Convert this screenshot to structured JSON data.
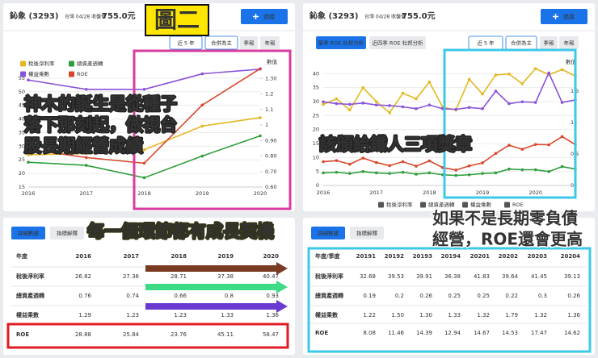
{
  "left_panel": {
    "stock_name": "鈊象 (3293)",
    "price_label": "台灣 04/28 收盤價",
    "price": "755.0元",
    "follow": "追蹤",
    "tabs": [
      "近 5 年",
      "合併為主",
      "季報",
      "年報"
    ],
    "table_tabs": [
      "詳細數據",
      "指標解釋"
    ],
    "table": {
      "header": [
        "年度",
        "2016",
        "2017",
        "2018",
        "2019",
        "2020"
      ],
      "rows": [
        [
          "稅後淨利率",
          "26.82",
          "27.36",
          "28.71",
          "37.38",
          "40.47"
        ],
        [
          "總資產週轉",
          "0.76",
          "0.74",
          "0.66",
          "0.8",
          "0.93"
        ],
        [
          "權益乘數",
          "1.29",
          "1.23",
          "1.23",
          "1.33",
          "1.36"
        ],
        [
          "ROE",
          "28.88",
          "25.84",
          "23.76",
          "45.11",
          "58.47"
        ]
      ]
    }
  },
  "right_panel": {
    "stock_name": "鈊象 (3293)",
    "price_label": "台灣 04/28 收盤價",
    "price": "755.0元",
    "follow": "追蹤",
    "tabs": [
      "單季 ROE 杜邦分析",
      "近四季 ROE 杜邦分析",
      "近 5 年",
      "合併為主",
      "季報",
      "年報"
    ],
    "table_tabs": [
      "詳細數據",
      "指標解釋"
    ],
    "table": {
      "header": [
        "年度/季度",
        "20191",
        "20192",
        "20193",
        "20194",
        "20201",
        "20202",
        "20203",
        "20204"
      ],
      "rows": [
        [
          "稅後淨利率",
          "32.68",
          "39.53",
          "39.91",
          "36.38",
          "41.83",
          "39.64",
          "41.45",
          "39.13"
        ],
        [
          "總資產週轉",
          "0.19",
          "0.2",
          "0.26",
          "0.25",
          "0.25",
          "0.22",
          "0.3",
          "0.26"
        ],
        [
          "權益乘數",
          "1.22",
          "1.50",
          "1.30",
          "1.33",
          "1.32",
          "1.79",
          "1.32",
          "1.36"
        ],
        [
          "ROE",
          "8.08",
          "11.46",
          "14.39",
          "12.94",
          "14.67",
          "14.53",
          "17.47",
          "14.62"
        ]
      ]
    }
  },
  "annotations": {
    "figure_label": "圖二",
    "left_chart_note": [
      "神木的誕生是從種子",
      "落下那刻起，做視台",
      "股長期經營成績"
    ],
    "left_table_note": "每一個環節都有成長契機",
    "right_chart_note": "該頒給鐵人三項獎章",
    "right_table_note": [
      "如果不是長期零負債",
      "經營，ROE還會更高"
    ]
  },
  "chart_data": [
    {
      "type": "line",
      "y2_label": "數值",
      "legend": "upper left",
      "grid": true,
      "categories": [
        "2016",
        "2017",
        "2018",
        "2019",
        "2020"
      ],
      "ylim": [
        15,
        60
      ],
      "yticks": [
        15,
        20,
        25,
        30,
        35,
        40,
        45,
        50,
        55
      ],
      "y2lim": [
        0.6,
        1.39
      ],
      "y2ticks": [
        {
          "value": 0.6,
          "label": "0.60"
        },
        {
          "value": 0.7,
          "label": "0.70"
        },
        {
          "value": 0.8,
          "label": "0.80"
        },
        {
          "value": 0.9,
          "label": "0.90"
        },
        1,
        1.1,
        1.2,
        {
          "value": 1.3,
          "label": "1.30"
        }
      ],
      "series": [
        {
          "name": "稅後淨利率",
          "color": "#e3b81f",
          "values": [
            26.82,
            27.36,
            28.71,
            37.38,
            40.47
          ]
        },
        {
          "name": "總資產週轉",
          "color": "#2f9e3c",
          "axis": "y2",
          "values": [
            0.76,
            0.74,
            0.66,
            0.8,
            0.93
          ]
        },
        {
          "name": "權益乘數",
          "color": "#8a52d8",
          "axis": "y2",
          "values": [
            1.29,
            1.23,
            1.23,
            1.33,
            1.36
          ]
        },
        {
          "name": "ROE",
          "color": "#d9472b",
          "values": [
            28.88,
            25.84,
            23.76,
            45.11,
            58.47
          ]
        }
      ]
    },
    {
      "type": "line",
      "y2_label": "數值",
      "legend": "bottom",
      "grid": true,
      "categories": [
        "2016",
        null,
        null,
        null,
        "2017",
        null,
        null,
        null,
        "2018",
        null,
        null,
        null,
        "2019",
        null,
        null,
        null,
        "2020",
        null,
        null,
        null
      ],
      "ylim": [
        0,
        45
      ],
      "yticks": [
        0,
        5,
        10,
        15,
        20,
        25,
        30,
        35,
        40
      ],
      "y2lim": [
        0,
        2
      ],
      "y2ticks": [
        0,
        0.5,
        1,
        1.5
      ],
      "series": [
        {
          "name": "稅後淨利率",
          "color": "#e3b81f",
          "values": [
            29,
            31,
            27,
            35,
            30,
            26,
            33,
            31,
            37,
            28,
            27,
            38,
            32.68,
            39.53,
            39.91,
            36.38,
            41.83,
            39.64,
            41.45,
            39.13
          ]
        },
        {
          "name": "總資產週轉",
          "color": "#2f9e3c",
          "axis": "y2",
          "values": [
            0.2,
            0.21,
            0.19,
            0.22,
            0.2,
            0.19,
            0.21,
            0.18,
            0.2,
            0.17,
            0.16,
            0.17,
            0.19,
            0.2,
            0.26,
            0.25,
            0.25,
            0.22,
            0.3,
            0.26
          ]
        },
        {
          "name": "權益乘數",
          "color": "#8a52d8",
          "axis": "y2",
          "values": [
            1.33,
            1.3,
            1.29,
            1.31,
            1.28,
            1.27,
            1.25,
            1.22,
            1.28,
            1.22,
            1.21,
            1.24,
            1.22,
            1.5,
            1.3,
            1.33,
            1.32,
            1.79,
            1.32,
            1.36
          ]
        },
        {
          "name": "ROE",
          "color": "#d9472b",
          "values": [
            8.5,
            8.9,
            7.6,
            9.8,
            8.2,
            7.1,
            8.5,
            6.9,
            8.8,
            6.4,
            5.5,
            7.0,
            8.08,
            11.46,
            14.39,
            12.94,
            14.67,
            14.53,
            17.47,
            14.62
          ]
        }
      ]
    }
  ]
}
